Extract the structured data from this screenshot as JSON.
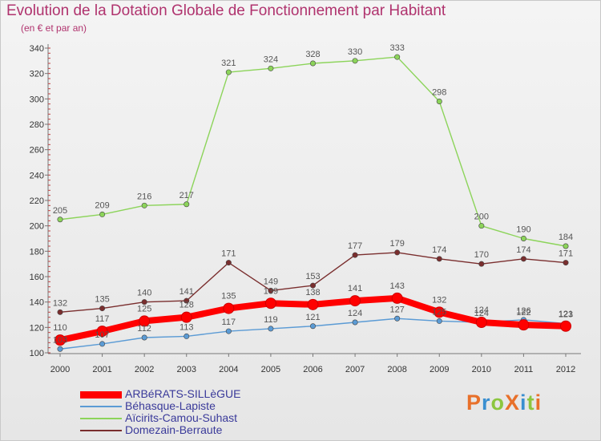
{
  "title": "Evolution de la Dotation Globale de Fonctionnement par Habitant",
  "subtitle": "(en € et par an)",
  "logo": {
    "text": "ProXiti",
    "colors": [
      "#e8702a",
      "#3a8fd0",
      "#8cc63f",
      "#e8702a",
      "#3a8fd0",
      "#8cc63f",
      "#e8702a"
    ]
  },
  "chart_data": {
    "type": "line",
    "title": "Evolution de la Dotation Globale de Fonctionnement par Habitant",
    "subtitle": "(en € et par an)",
    "x": [
      "2000",
      "2001",
      "2002",
      "2003",
      "2004",
      "2005",
      "2006",
      "2007",
      "2008",
      "2009",
      "2010",
      "2011",
      "2012"
    ],
    "ylim": [
      100,
      340
    ],
    "yticks": [
      100,
      120,
      140,
      160,
      180,
      200,
      220,
      240,
      260,
      280,
      300,
      320,
      340
    ],
    "grid": false,
    "legend_position": "bottom-left",
    "series": [
      {
        "name": "ARBéRATS-SILLèGUE",
        "color": "#ff0000",
        "values": [
          110,
          117,
          125,
          128,
          135,
          139,
          138,
          141,
          143,
          132,
          124,
          122,
          121
        ],
        "labels": [
          "110",
          "117",
          "125",
          "128",
          "135",
          "139",
          "138",
          "141",
          "143",
          "132",
          "124",
          "122",
          "121"
        ]
      },
      {
        "name": "Béhasque-Lapiste",
        "color": "#5b9bd5",
        "values": [
          103,
          107,
          112,
          113,
          117,
          119,
          121,
          124,
          127,
          125,
          124,
          126,
          123
        ],
        "labels": [
          "103",
          "107",
          "112",
          "113",
          "117",
          "119",
          "121",
          "124",
          "127",
          "125",
          "124",
          "126",
          "123"
        ]
      },
      {
        "name": "Aïcirits-Camou-Suhast",
        "color": "#8cd45a",
        "values": [
          205,
          209,
          216,
          217,
          321,
          324,
          328,
          330,
          333,
          298,
          200,
          190,
          184
        ],
        "labels": [
          "205",
          "209",
          "216",
          "217",
          "321",
          "324",
          "328",
          "330",
          "333",
          "298",
          "200",
          "190",
          "184"
        ]
      },
      {
        "name": "Domezain-Berraute",
        "color": "#7a2e2e",
        "values": [
          132,
          135,
          140,
          141,
          171,
          149,
          153,
          177,
          179,
          174,
          170,
          174,
          171
        ],
        "labels": [
          "132",
          "135",
          "140",
          "141",
          "171",
          "149",
          "153",
          "177",
          "179",
          "174",
          "170",
          "174",
          "171"
        ]
      }
    ]
  }
}
